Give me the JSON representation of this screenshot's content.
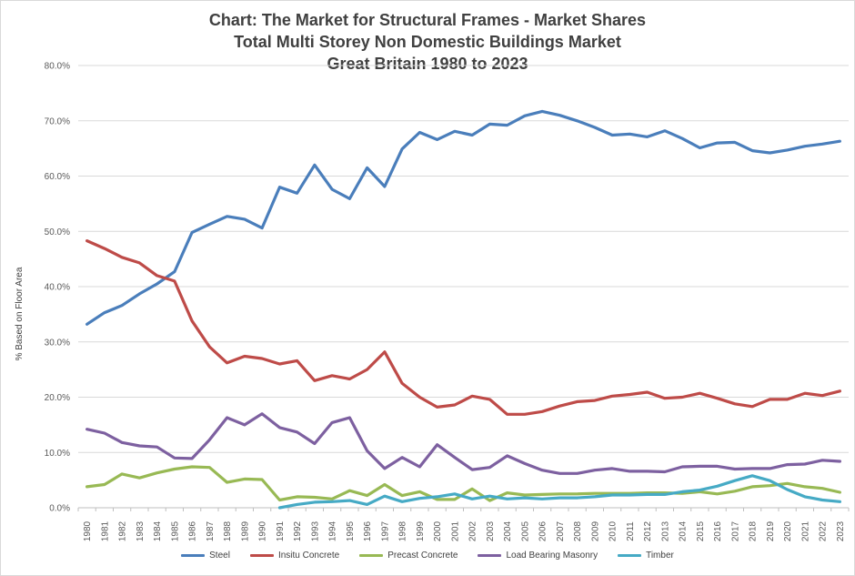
{
  "colors": {
    "Steel": "#4a7ebb",
    "Insitu Concrete": "#be4b48",
    "Precast Concrete": "#98b954",
    "Load Bearing Masonry": "#7d60a0",
    "Timber": "#46aac5"
  },
  "chart_data": {
    "type": "line",
    "title": [
      "Chart: The Market for Structural Frames - Market Shares",
      "Total Multi Storey Non Domestic Buildings Market",
      "Great Britain 1980 to 2023"
    ],
    "xlabel": "",
    "ylabel": "% Based on Floor Area",
    "ylim": [
      0,
      80
    ],
    "yticks": [
      "0.0%",
      "10.0%",
      "20.0%",
      "30.0%",
      "40.0%",
      "50.0%",
      "60.0%",
      "70.0%",
      "80.0%"
    ],
    "grid": "horizontal",
    "legend": "bottom",
    "x": [
      "1980",
      "1981",
      "1982",
      "1983",
      "1984",
      "1985",
      "1986",
      "1987",
      "1988",
      "1989",
      "1990",
      "1991",
      "1992",
      "1993",
      "1994",
      "1995",
      "1996",
      "1997",
      "1998",
      "1999",
      "2000",
      "2001",
      "2002",
      "2003",
      "2004",
      "2005",
      "2006",
      "2007",
      "2008",
      "2009",
      "2010",
      "2011",
      "2012",
      "2013",
      "2014",
      "2015",
      "2016",
      "2017",
      "2018",
      "2019",
      "2020",
      "2021",
      "2022",
      "2023"
    ],
    "series": [
      {
        "name": "Steel",
        "values": [
          33.2,
          35.3,
          36.6,
          38.7,
          40.5,
          42.7,
          49.8,
          51.3,
          52.7,
          52.2,
          50.6,
          58.0,
          56.9,
          62.0,
          57.6,
          55.9,
          61.5,
          58.1,
          64.9,
          67.9,
          66.6,
          68.1,
          67.4,
          69.4,
          69.2,
          70.9,
          71.7,
          71.0,
          70.0,
          68.8,
          67.4,
          67.6,
          67.1,
          68.2,
          66.8,
          65.1,
          66.0,
          66.1,
          64.6,
          64.2,
          64.7,
          65.4,
          65.8,
          66.3
        ]
      },
      {
        "name": "Insitu Concrete",
        "values": [
          48.3,
          46.9,
          45.3,
          44.3,
          42.0,
          41.0,
          33.8,
          29.1,
          26.2,
          27.4,
          27.0,
          26.0,
          26.6,
          23.0,
          23.9,
          23.3,
          25.0,
          28.2,
          22.5,
          20.0,
          18.2,
          18.6,
          20.2,
          19.6,
          16.9,
          16.9,
          17.4,
          18.4,
          19.2,
          19.4,
          20.2,
          20.5,
          20.9,
          19.8,
          20.0,
          20.7,
          19.8,
          18.8,
          18.3,
          19.6,
          19.6,
          20.7,
          20.3,
          21.1
        ]
      },
      {
        "name": "Precast Concrete",
        "values": [
          3.8,
          4.2,
          6.1,
          5.4,
          6.3,
          7.0,
          7.4,
          7.3,
          4.6,
          5.2,
          5.1,
          1.4,
          2.0,
          1.9,
          1.6,
          3.1,
          2.2,
          4.2,
          2.2,
          2.9,
          1.5,
          1.5,
          3.4,
          1.3,
          2.7,
          2.3,
          2.4,
          2.5,
          2.5,
          2.6,
          2.6,
          2.6,
          2.7,
          2.7,
          2.6,
          2.9,
          2.5,
          3.0,
          3.8,
          4.0,
          4.4,
          3.8,
          3.5,
          2.8
        ]
      },
      {
        "name": "Load Bearing Masonry",
        "values": [
          14.2,
          13.5,
          11.8,
          11.2,
          11.0,
          9.0,
          8.9,
          12.3,
          16.3,
          15.0,
          17.0,
          14.5,
          13.7,
          11.6,
          15.4,
          16.3,
          10.3,
          7.1,
          9.1,
          7.4,
          11.4,
          9.1,
          6.9,
          7.3,
          9.4,
          8.0,
          6.8,
          6.2,
          6.2,
          6.8,
          7.1,
          6.6,
          6.6,
          6.5,
          7.4,
          7.5,
          7.5,
          7.0,
          7.1,
          7.1,
          7.8,
          7.9,
          8.6,
          8.4
        ]
      },
      {
        "name": "Timber",
        "values": [
          null,
          null,
          null,
          null,
          null,
          null,
          null,
          null,
          null,
          null,
          null,
          0.0,
          0.6,
          1.0,
          1.1,
          1.3,
          0.6,
          2.1,
          1.1,
          1.7,
          2.0,
          2.5,
          1.6,
          2.1,
          1.6,
          1.8,
          1.6,
          1.8,
          1.8,
          2.0,
          2.3,
          2.3,
          2.4,
          2.4,
          2.9,
          3.2,
          3.9,
          4.9,
          5.8,
          4.9,
          3.3,
          2.0,
          1.4,
          1.1
        ]
      }
    ]
  }
}
